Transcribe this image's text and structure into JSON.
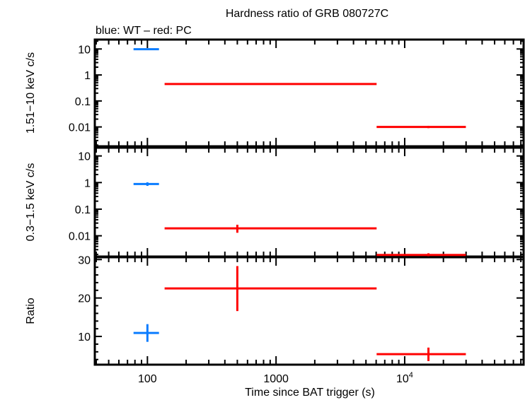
{
  "chart_data": {
    "type": "scatter",
    "title": "Hardness ratio of GRB 080727C",
    "subtitle": "blue: WT – red: PC",
    "xlabel": "Time since BAT trigger (s)",
    "xscale": "log",
    "xlim": [
      39,
      84000
    ],
    "xticks": [
      {
        "value": 100,
        "label": "100"
      },
      {
        "value": 1000,
        "label": "1000"
      },
      {
        "value": 10000,
        "label": "10",
        "sup": "4"
      }
    ],
    "colors": {
      "WT": "#0a7cff",
      "PC": "#ff0000"
    },
    "panels": [
      {
        "ylabel": "1.51−10 keV c/s",
        "yscale": "log",
        "ylim": [
          0.0018,
          23
        ],
        "yticks": [
          {
            "value": 10,
            "label": "10"
          },
          {
            "value": 1,
            "label": "1"
          },
          {
            "value": 0.1,
            "label": "0.1"
          },
          {
            "value": 0.01,
            "label": "0.01"
          }
        ],
        "points": [
          {
            "mode": "WT",
            "x": 100,
            "xlo": 78,
            "xhi": 123,
            "y": 9.8,
            "ylo": 9.3,
            "yhi": 10.3
          },
          {
            "mode": "PC",
            "x": 500,
            "xlo": 136,
            "xhi": 6050,
            "y": 0.45,
            "ylo": 0.42,
            "yhi": 0.48
          },
          {
            "mode": "PC",
            "x": 15300,
            "xlo": 6050,
            "xhi": 29900,
            "y": 0.01,
            "ylo": 0.009,
            "yhi": 0.011
          }
        ]
      },
      {
        "ylabel": "0.3−1.5 keV c/s",
        "yscale": "log",
        "ylim": [
          0.00166,
          20.4
        ],
        "yticks": [
          {
            "value": 10,
            "label": "10"
          },
          {
            "value": 1,
            "label": "1"
          },
          {
            "value": 0.1,
            "label": "0.1"
          },
          {
            "value": 0.01,
            "label": "0.01"
          }
        ],
        "points": [
          {
            "mode": "WT",
            "x": 100,
            "xlo": 78,
            "xhi": 123,
            "y": 0.88,
            "ylo": 0.75,
            "yhi": 1.02
          },
          {
            "mode": "PC",
            "x": 500,
            "xlo": 136,
            "xhi": 6050,
            "y": 0.019,
            "ylo": 0.013,
            "yhi": 0.026
          },
          {
            "mode": "PC",
            "x": 15300,
            "xlo": 6050,
            "xhi": 29900,
            "y": 0.0019,
            "ylo": 0.0017,
            "yhi": 0.0022
          }
        ]
      },
      {
        "ylabel": "Ratio",
        "yscale": "linear",
        "ylim": [
          2.66,
          30.6
        ],
        "yticks": [
          {
            "value": 10,
            "label": "10"
          },
          {
            "value": 20,
            "label": "20"
          },
          {
            "value": 30,
            "label": "30"
          }
        ],
        "points": [
          {
            "mode": "WT",
            "x": 100,
            "xlo": 78,
            "xhi": 123,
            "y": 10.9,
            "ylo": 8.6,
            "yhi": 13.2
          },
          {
            "mode": "PC",
            "x": 500,
            "xlo": 136,
            "xhi": 6050,
            "y": 22.5,
            "ylo": 16.6,
            "yhi": 28.3
          },
          {
            "mode": "PC",
            "x": 15300,
            "xlo": 6050,
            "xhi": 29900,
            "y": 5.4,
            "ylo": 3.6,
            "yhi": 7.1
          }
        ]
      }
    ]
  }
}
